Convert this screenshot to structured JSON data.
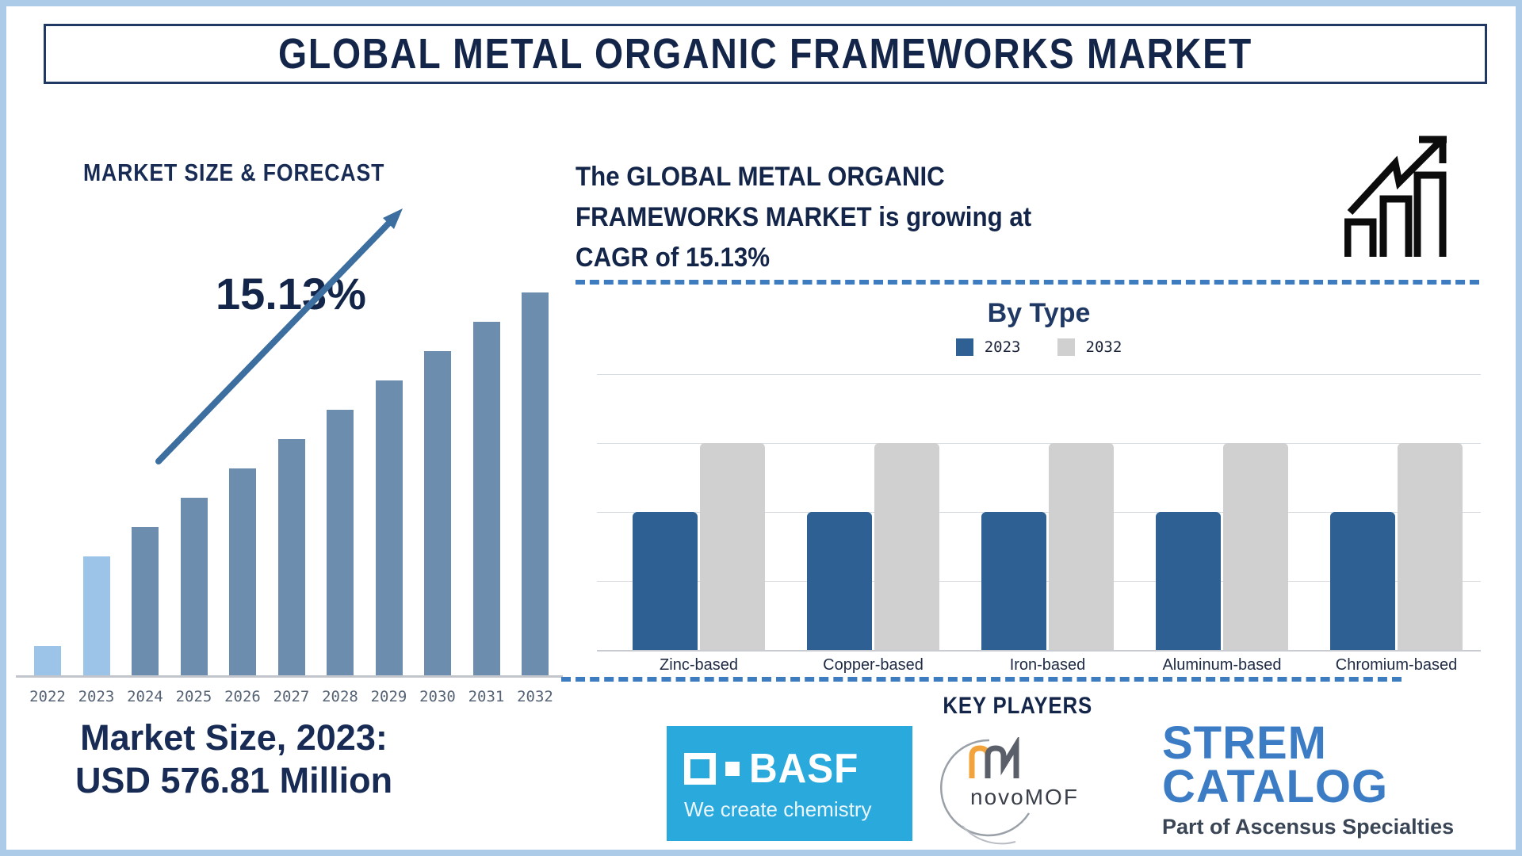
{
  "title": "GLOBAL METAL ORGANIC FRAMEWORKS MARKET",
  "left": {
    "section_title": "MARKET SIZE & FORECAST",
    "cagr_label": "15.13%",
    "market_size_caption": "Market Size, 2023:\nUSD 576.81 Million"
  },
  "right": {
    "growth_text": "The GLOBAL METAL ORGANIC\nFRAMEWORKS MARKET is growing at\nCAGR of 15.13%",
    "by_type_title": "By Type",
    "key_players_title": "KEY PLAYERS",
    "key_players": {
      "basf": {
        "name": "BASF",
        "tagline": "We create chemistry"
      },
      "novomof": {
        "name": "novoMOF"
      },
      "strem": {
        "line1": "STREM",
        "line2": "CATALOG",
        "tagline": "Part of Ascensus Specialties"
      }
    }
  },
  "colors": {
    "navy_text": "#14254a",
    "forecast_bar_default": "#6c8dad",
    "forecast_bar_highlight": "#9cc3e8",
    "arrow_blue": "#3c6e9f",
    "by_type_2023_blue": "#2e6093",
    "by_type_2032_gray": "#d0d0d0",
    "dashed_line_blue": "#3e7cc0",
    "basf_background": "#2aa9dc",
    "strem_blue": "#3b7cc4",
    "outer_border": "#abcbe9"
  },
  "chart_data": [
    {
      "id": "market_size_forecast",
      "type": "bar",
      "title": "MARKET SIZE & FORECAST",
      "categories": [
        "2022",
        "2023",
        "2024",
        "2025",
        "2026",
        "2027",
        "2028",
        "2029",
        "2030",
        "2031",
        "2032"
      ],
      "values_relative": [
        37,
        150,
        187,
        224,
        261,
        298,
        335,
        372,
        409,
        446,
        483
      ],
      "highlight_years": [
        "2022",
        "2023"
      ],
      "annotations": {
        "cagr": "15.13%",
        "market_size_2023": "USD 576.81 Million"
      },
      "xlabel": "",
      "ylabel": "",
      "grid": false,
      "colors": {
        "highlight": "#9cc3e8",
        "default": "#6c8dad"
      }
    },
    {
      "id": "by_type",
      "type": "bar",
      "title": "By Type",
      "categories": [
        "Zinc-based",
        "Copper-based",
        "Iron-based",
        "Aluminum-based",
        "Chromium-based"
      ],
      "series": [
        {
          "name": "2023",
          "values": [
            2,
            2,
            2,
            2,
            2
          ],
          "color": "#2e6093"
        },
        {
          "name": "2032",
          "values": [
            3,
            3,
            3,
            3,
            3
          ],
          "color": "#d0d0d0"
        }
      ],
      "ylim": [
        0,
        4
      ],
      "grid": true,
      "legend_position": "top",
      "xlabel": "",
      "ylabel": ""
    }
  ]
}
